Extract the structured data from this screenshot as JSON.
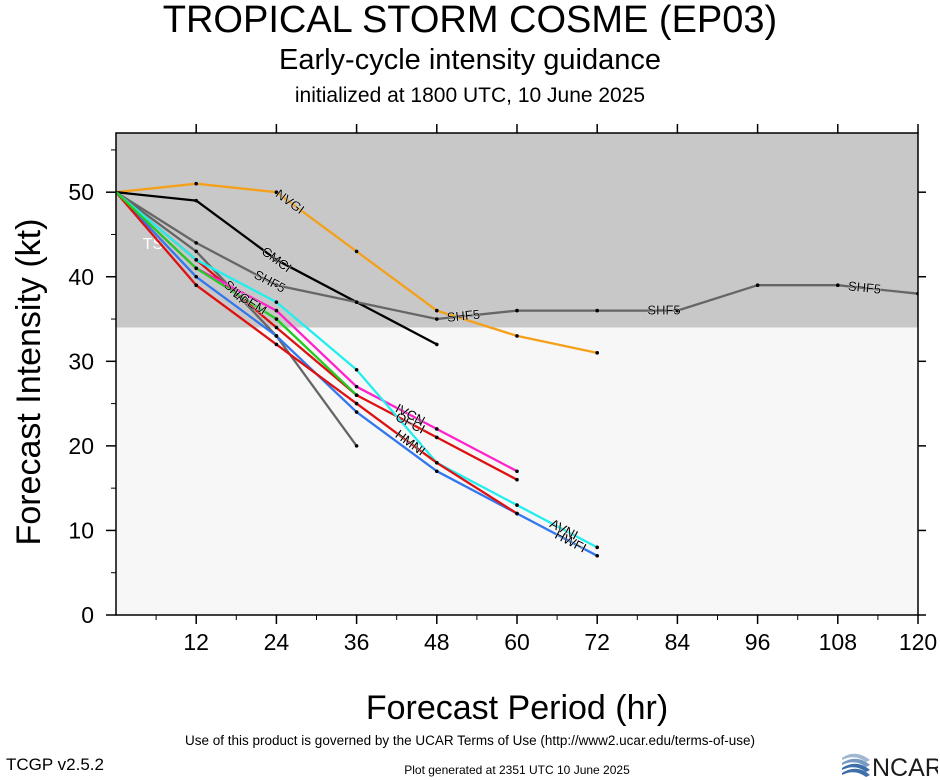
{
  "header": {
    "title": "TROPICAL STORM COSME (EP03)",
    "subtitle": "Early-cycle intensity guidance",
    "init": "initialized at 1800 UTC, 10 June 2025"
  },
  "footer": {
    "terms": "Use of this product is governed by the UCAR Terms of Use (http://www2.ucar.edu/terms-of-use)",
    "version": "TCGP v2.5.2",
    "generated": "Plot generated at 2351 UTC   10 June 2025",
    "logo_text": "NCAR"
  },
  "chart_data": {
    "type": "line",
    "xlabel": "Forecast Period (hr)",
    "ylabel": "Forecast Intensity (kt)",
    "xlim": [
      0,
      120
    ],
    "ylim": [
      0,
      57
    ],
    "xticks": [
      12,
      24,
      36,
      48,
      60,
      72,
      84,
      96,
      108,
      120
    ],
    "yticks": [
      0,
      10,
      20,
      30,
      40,
      50
    ],
    "band": {
      "label": "TS",
      "from": 34,
      "to": 57,
      "color": "#c8c8c8"
    },
    "background": "#f7f7f7",
    "series": [
      {
        "name": "NVGI",
        "color": "#f5a01a",
        "x": [
          0,
          12,
          24,
          36,
          48,
          60,
          72
        ],
        "y": [
          50,
          51,
          50,
          43,
          36,
          33,
          31
        ],
        "label_x": 26
      },
      {
        "name": "CMCI",
        "color": "#000000",
        "x": [
          0,
          12,
          24,
          36,
          48
        ],
        "y": [
          50,
          49,
          42,
          37,
          32
        ],
        "label_x": 24
      },
      {
        "name": "SHF5",
        "color": "#666666",
        "x": [
          0,
          12,
          24,
          36,
          48,
          60,
          72,
          84,
          96,
          108,
          120
        ],
        "y": [
          50,
          44,
          39,
          37,
          35,
          36,
          36,
          36,
          39,
          39,
          38
        ],
        "label_x": 23,
        "extra_labels_x": [
          52,
          82,
          112
        ]
      },
      {
        "name": "SHIP",
        "color": "#666666",
        "x": [
          0,
          12,
          24,
          36
        ],
        "y": [
          50,
          43,
          33,
          20
        ],
        "label_x": 18
      },
      {
        "name": "OFCI",
        "color": "#dd1111",
        "x": [
          0,
          12,
          24,
          36,
          48,
          60
        ],
        "y": [
          50,
          42,
          34,
          26,
          21,
          16
        ],
        "label_x": 44
      },
      {
        "name": "IVCN",
        "color": "#ff22cc",
        "x": [
          0,
          12,
          24,
          36,
          48,
          60
        ],
        "y": [
          50,
          41,
          36,
          27,
          22,
          17
        ],
        "label_x": 44
      },
      {
        "name": "AVNI",
        "color": "#22eeee",
        "x": [
          0,
          12,
          24,
          36,
          48,
          60,
          72
        ],
        "y": [
          50,
          42,
          37,
          29,
          18,
          13,
          8
        ],
        "label_x": 67
      },
      {
        "name": "HWFI",
        "color": "#3377ee",
        "x": [
          0,
          12,
          24,
          36,
          48,
          60,
          72
        ],
        "y": [
          50,
          40,
          33,
          24,
          17,
          12,
          7
        ],
        "label_x": 68
      },
      {
        "name": "HMNI",
        "color": "#dd1111",
        "x": [
          0,
          12,
          24,
          36,
          48,
          60
        ],
        "y": [
          50,
          39,
          32,
          25,
          18,
          12
        ],
        "label_x": 44
      },
      {
        "name": "LGEM",
        "color": "#22cc22",
        "x": [
          0,
          12,
          24,
          36
        ],
        "y": [
          50,
          41,
          35,
          26
        ],
        "label_x": 20
      }
    ]
  }
}
